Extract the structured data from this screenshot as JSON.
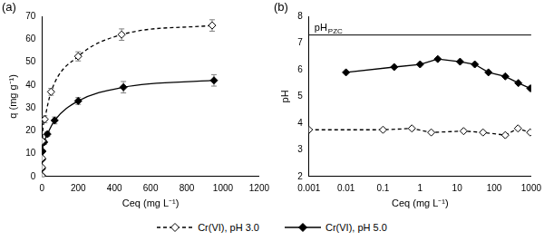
{
  "chart_data": [
    {
      "type": "line",
      "panel_label": "(a)",
      "x_label": "Ceq (mg L⁻¹)",
      "y_label": "q (mg g⁻¹)",
      "xlim": [
        0,
        1200
      ],
      "xticks": [
        0,
        200,
        400,
        600,
        800,
        1000,
        1200
      ],
      "ylim": [
        0,
        70
      ],
      "yticks": [
        0,
        10,
        20,
        30,
        40,
        50,
        60,
        70
      ],
      "grid": false,
      "legend": "bottom",
      "series": [
        {
          "name": "Cr(VI), pH 3.0",
          "color": "#000000",
          "marker": "diamond-open",
          "line_style": "dashed",
          "x": [
            0.001,
            0.1,
            0.6,
            2,
            15,
            50,
            200,
            440,
            940
          ],
          "values": [
            0.3,
            4,
            8,
            15.5,
            25,
            37,
            52.5,
            62,
            66
          ],
          "errors": [
            0.5,
            0.5,
            0.5,
            1,
            1.5,
            1.5,
            2,
            2.5,
            2.5
          ]
        },
        {
          "name": "Cr(VI), pH 5.0",
          "color": "#000000",
          "marker": "diamond",
          "line_style": "solid",
          "x": [
            0.01,
            0.2,
            1,
            3,
            12,
            30,
            70,
            200,
            450,
            950
          ],
          "values": [
            0.3,
            3.5,
            7.5,
            11,
            15,
            18.5,
            24.5,
            33,
            39,
            42
          ],
          "errors": [
            0.3,
            0.5,
            0.5,
            0.5,
            1,
            1,
            1.5,
            1.5,
            2.5,
            2.5
          ]
        }
      ]
    },
    {
      "type": "line",
      "panel_label": "(b)",
      "log": "x",
      "x_label": "Ceq (mg L⁻¹)",
      "y_label": "pH",
      "xlim": [
        0.001,
        1000
      ],
      "xticks": [
        0.001,
        0.01,
        0.1,
        1,
        10,
        100,
        1000
      ],
      "ylim": [
        2,
        8
      ],
      "yticks": [
        2,
        3,
        4,
        5,
        6,
        7,
        8
      ],
      "grid": false,
      "hlines": [
        {
          "value": 7.3,
          "label": "pH",
          "label_sub": "PZC"
        }
      ],
      "series": [
        {
          "name": "Cr(VI), pH 3.0",
          "color": "#000000",
          "marker": "diamond-open",
          "line_style": "dashed",
          "x": [
            0.001,
            0.1,
            0.6,
            2,
            15,
            50,
            200,
            440,
            940
          ],
          "values": [
            3.75,
            3.75,
            3.8,
            3.65,
            3.7,
            3.65,
            3.55,
            3.8,
            3.65
          ]
        },
        {
          "name": "Cr(VI), pH 5.0",
          "color": "#000000",
          "marker": "diamond",
          "line_style": "solid",
          "x": [
            0.01,
            0.2,
            1,
            3,
            12,
            30,
            70,
            200,
            450,
            950
          ],
          "values": [
            5.9,
            6.1,
            6.2,
            6.4,
            6.3,
            6.2,
            5.9,
            5.75,
            5.5,
            5.3
          ]
        }
      ]
    }
  ]
}
